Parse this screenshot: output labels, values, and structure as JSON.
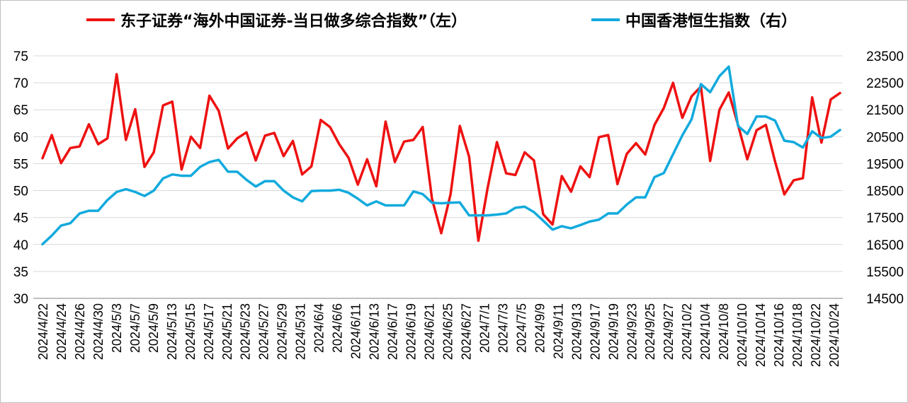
{
  "colors": {
    "red": "#ee1111",
    "blue": "#11aadd",
    "grid": "#d9d9d9",
    "axis": "#808080"
  },
  "legend": {
    "left_series": "东子证券“海外中国证券-当日做多综合指数”（左）",
    "right_series": "中国香港恒生指数（右）"
  },
  "chart_data": {
    "type": "line",
    "legend_position": "top",
    "grid": true,
    "x_tick_labels": [
      "2024/4/22",
      "2024/4/24",
      "2024/4/26",
      "2024/4/30",
      "2024/5/3",
      "2024/5/7",
      "2024/5/9",
      "2024/5/13",
      "2024/5/15",
      "2024/5/17",
      "2024/5/21",
      "2024/5/23",
      "2024/5/27",
      "2024/5/29",
      "2024/5/31",
      "2024/6/4",
      "2024/6/6",
      "2024/6/11",
      "2024/6/13",
      "2024/6/17",
      "2024/6/19",
      "2024/6/21",
      "2024/6/25",
      "2024/6/27",
      "2024/7/1",
      "2024/7/3",
      "2024/7/5",
      "2024/9/9",
      "2024/9/11",
      "2024/9/13",
      "2024/9/17",
      "2024/9/19",
      "2024/9/23",
      "2024/9/25",
      "2024/9/27",
      "2024/10/2",
      "2024/10/4",
      "2024/10/8",
      "2024/10/10",
      "2024/10/14",
      "2024/10/16",
      "2024/10/18",
      "2024/10/22",
      "2024/10/24"
    ],
    "y_left": {
      "min": 30,
      "max": 75,
      "ticks": [
        30,
        35,
        40,
        45,
        50,
        55,
        60,
        65,
        70,
        75
      ]
    },
    "y_right": {
      "min": 14500,
      "max": 23500,
      "ticks": [
        14500,
        15500,
        16500,
        17500,
        18500,
        19500,
        20500,
        21500,
        22500,
        23500
      ]
    },
    "series": [
      {
        "name": "东子证券“海外中国证券-当日做多综合指数”（左）",
        "axis": "left",
        "color": "#ee1111",
        "values": [
          56.0,
          60.3,
          55.1,
          57.9,
          58.2,
          62.3,
          58.6,
          59.7,
          71.6,
          59.4,
          65.1,
          54.4,
          57.1,
          65.8,
          66.5,
          53.9,
          60.0,
          57.9,
          67.6,
          64.8,
          57.8,
          59.7,
          60.8,
          55.6,
          60.2,
          60.7,
          56.4,
          59.2,
          53.0,
          54.5,
          63.1,
          61.8,
          58.6,
          56.1,
          51.1,
          55.8,
          50.8,
          62.8,
          55.3,
          59.1,
          59.4,
          61.8,
          48.5,
          42.1,
          49.3,
          62.0,
          56.3,
          40.7,
          50.5,
          59.0,
          53.2,
          52.9,
          57.1,
          55.6,
          45.6,
          43.7,
          52.7,
          49.8,
          54.5,
          52.5,
          59.9,
          60.3,
          51.2,
          56.8,
          58.8,
          56.7,
          62.2,
          65.3,
          70.0,
          63.5,
          67.5,
          69.3,
          55.5,
          65.0,
          68.2,
          62.2,
          55.8,
          61.2,
          62.2,
          55.4,
          49.3,
          51.9,
          52.3,
          67.3,
          58.9,
          66.9,
          68.1
        ]
      },
      {
        "name": "中国香港恒生指数（右）",
        "axis": "right",
        "color": "#11aadd",
        "values": [
          16510,
          16830,
          17200,
          17290,
          17650,
          17750,
          17750,
          18150,
          18450,
          18550,
          18450,
          18300,
          18500,
          18950,
          19100,
          19050,
          19050,
          19380,
          19560,
          19640,
          19200,
          19200,
          18900,
          18650,
          18850,
          18850,
          18500,
          18250,
          18100,
          18480,
          18500,
          18500,
          18530,
          18420,
          18200,
          17950,
          18100,
          17950,
          17950,
          17950,
          18470,
          18370,
          18050,
          18030,
          18050,
          18060,
          17580,
          17580,
          17580,
          17610,
          17650,
          17860,
          17900,
          17700,
          17380,
          17050,
          17180,
          17100,
          17220,
          17350,
          17420,
          17650,
          17650,
          17980,
          18250,
          18250,
          19000,
          19150,
          19850,
          20550,
          21150,
          22450,
          22150,
          22750,
          23100,
          20900,
          20600,
          21250,
          21250,
          21100,
          20350,
          20300,
          20100,
          20700,
          20450,
          20500,
          20750
        ]
      }
    ]
  }
}
